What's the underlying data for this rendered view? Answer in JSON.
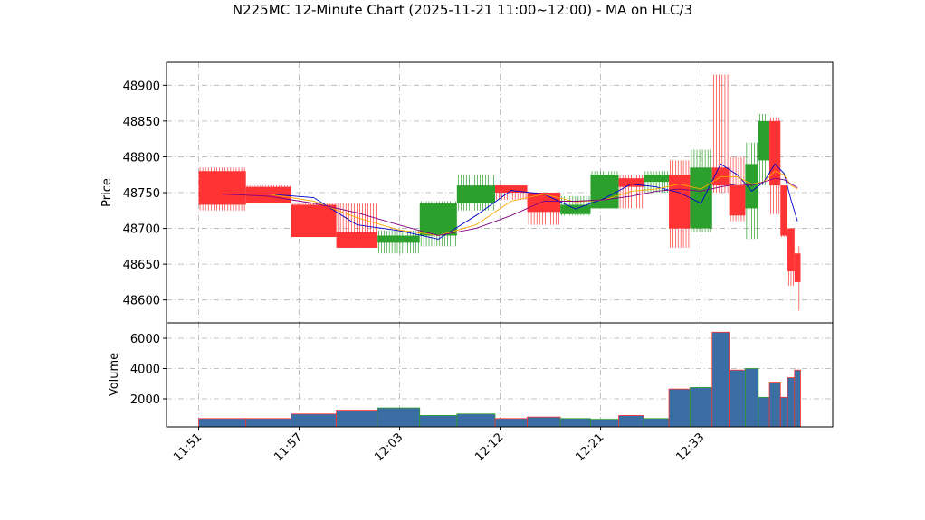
{
  "chart_data": {
    "type": "candlestick",
    "title": "N225MC 12-Minute Chart (2025-11-21 11:00~12:00) - MA on HLC/3",
    "y_label": "Price",
    "volume_label": "Volume",
    "bins": [
      0,
      0.47,
      0.92,
      1.37,
      1.78,
      2.2,
      2.57,
      2.95,
      3.27,
      3.6,
      3.9,
      4.18,
      4.43,
      4.68,
      4.89,
      5.11,
      5.28,
      5.44,
      5.57,
      5.68,
      5.79,
      5.86,
      5.93,
      5.99
    ],
    "open": [
      48780,
      48758,
      48733,
      48695,
      48680,
      48690,
      48735,
      48760,
      48750,
      48720,
      48728,
      48770,
      48765,
      48775,
      48700,
      48785,
      48760,
      48728,
      48795,
      48850,
      48760,
      48700,
      48665
    ],
    "high": [
      48785,
      48760,
      48735,
      48735,
      48697,
      48738,
      48775,
      48760,
      48750,
      48745,
      48780,
      48775,
      48780,
      48795,
      48810,
      48915,
      48800,
      48820,
      48860,
      48855,
      48760,
      48700,
      48675
    ],
    "low": [
      48725,
      48735,
      48688,
      48673,
      48665,
      48675,
      48725,
      48740,
      48705,
      48718,
      48728,
      48728,
      48750,
      48673,
      48695,
      48750,
      48710,
      48685,
      48760,
      48720,
      48688,
      48620,
      48585
    ],
    "close": [
      48733,
      48735,
      48688,
      48673,
      48690,
      48735,
      48760,
      48750,
      48723,
      48733,
      48775,
      48758,
      48775,
      48700,
      48785,
      48760,
      48718,
      48790,
      48850,
      48760,
      48690,
      48640,
      48625
    ],
    "volume": [
      700,
      700,
      1000,
      1250,
      1400,
      900,
      1000,
      700,
      800,
      700,
      650,
      900,
      700,
      2650,
      2750,
      6400,
      3900,
      4000,
      2100,
      3100,
      2100,
      3400,
      3900
    ],
    "ma_lines": [
      {
        "color": "#0000cc",
        "values": [
          48748,
          48748,
          48743,
          48705,
          48697,
          48685,
          48718,
          48753,
          48748,
          48727,
          48742,
          48762,
          48758,
          48750,
          48735,
          48790,
          48775,
          48752,
          48765,
          48790,
          48777,
          48740,
          48710
        ]
      },
      {
        "color": "#ffa500",
        "values": [
          48748,
          48748,
          48738,
          48715,
          48698,
          48690,
          48705,
          48738,
          48748,
          48737,
          48740,
          48752,
          48755,
          48762,
          48755,
          48772,
          48772,
          48762,
          48765,
          48780,
          48775,
          48760,
          48755
        ]
      },
      {
        "color": "#800080",
        "values": [
          48748,
          48745,
          48735,
          48722,
          48705,
          48690,
          48700,
          48718,
          48738,
          48738,
          48740,
          48745,
          48752,
          48755,
          48752,
          48758,
          48762,
          48760,
          48765,
          48770,
          48768,
          48762,
          48757
        ]
      }
    ],
    "up_color": "#2ca02c",
    "down_color": "#ff3333",
    "volume_color": "#3a6ea5",
    "xlim": [
      -0.32,
      6.31
    ],
    "xticks": [
      {
        "value": 0,
        "label": "11:51"
      },
      {
        "value": 1,
        "label": "11:57"
      },
      {
        "value": 2,
        "label": "12:03"
      },
      {
        "value": 3,
        "label": "12:12"
      },
      {
        "value": 4,
        "label": "12:21"
      },
      {
        "value": 5,
        "label": "12:33"
      }
    ],
    "ylim": [
      48568,
      48932
    ],
    "yticks": [
      48600,
      48650,
      48700,
      48750,
      48800,
      48850,
      48900
    ],
    "volume_ylim": [
      150,
      7015
    ],
    "volume_yticks": [
      2000,
      4000,
      6000
    ],
    "grid": true
  }
}
